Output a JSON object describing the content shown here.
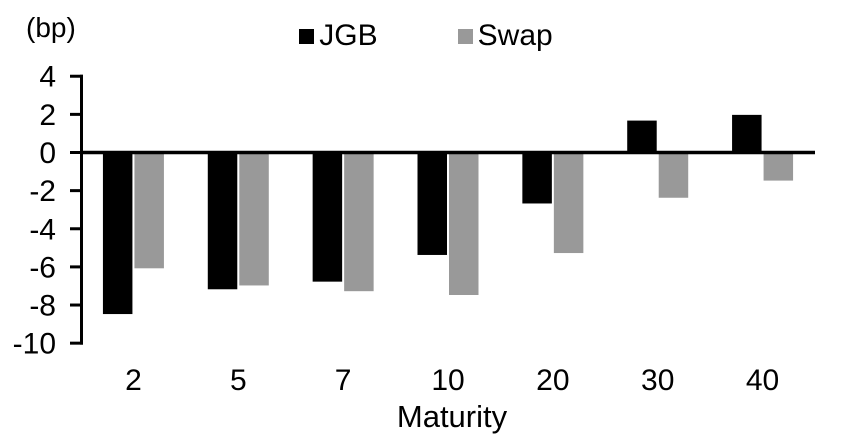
{
  "chart_data": {
    "type": "bar",
    "title": "",
    "ylabel_unit": "(bp)",
    "xlabel": "Maturity",
    "categories": [
      "2",
      "5",
      "7",
      "10",
      "20",
      "30",
      "40"
    ],
    "series": [
      {
        "name": "JGB",
        "color": "#000000",
        "values": [
          -8.5,
          -7.2,
          -6.8,
          -5.4,
          -2.7,
          1.7,
          2.0
        ]
      },
      {
        "name": "Swap",
        "color": "#999999",
        "values": [
          -6.1,
          -7.0,
          -7.3,
          -7.5,
          -5.3,
          -2.4,
          -1.5
        ]
      }
    ],
    "yticks": [
      4,
      2,
      0,
      -2,
      -4,
      -6,
      -8,
      -10
    ],
    "ylim": [
      -10,
      4
    ],
    "grid": false,
    "legend_position": "top-center",
    "axis_color": "#000000",
    "background_color": "#ffffff"
  }
}
